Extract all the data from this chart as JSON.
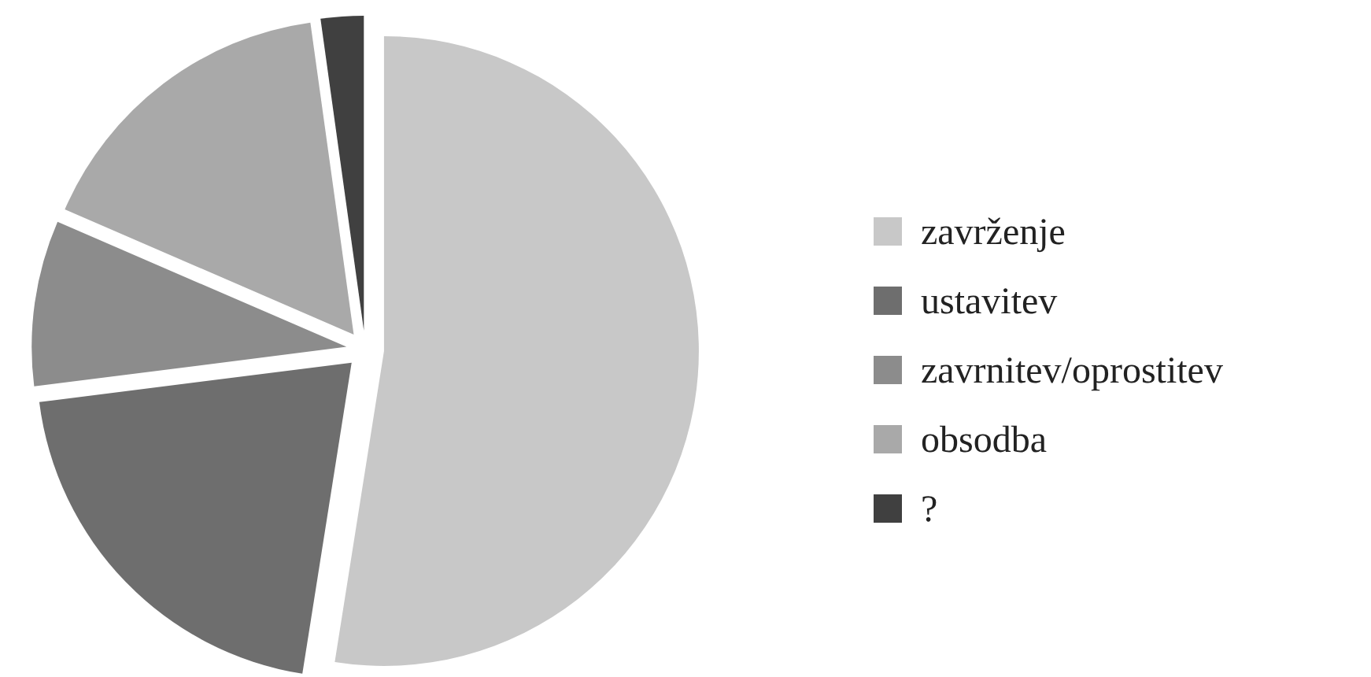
{
  "chart_data": {
    "type": "pie",
    "categories": [
      "zavrženje",
      "ustavitev",
      "zavrnitev/oprostitev",
      "obsodba",
      "?"
    ],
    "values": [
      52.5,
      20.5,
      8.5,
      16.3,
      2.2
    ],
    "colors": [
      "#c8c8c8",
      "#6e6e6e",
      "#8c8c8c",
      "#a9a9a9",
      "#404040"
    ],
    "legend": "right"
  }
}
